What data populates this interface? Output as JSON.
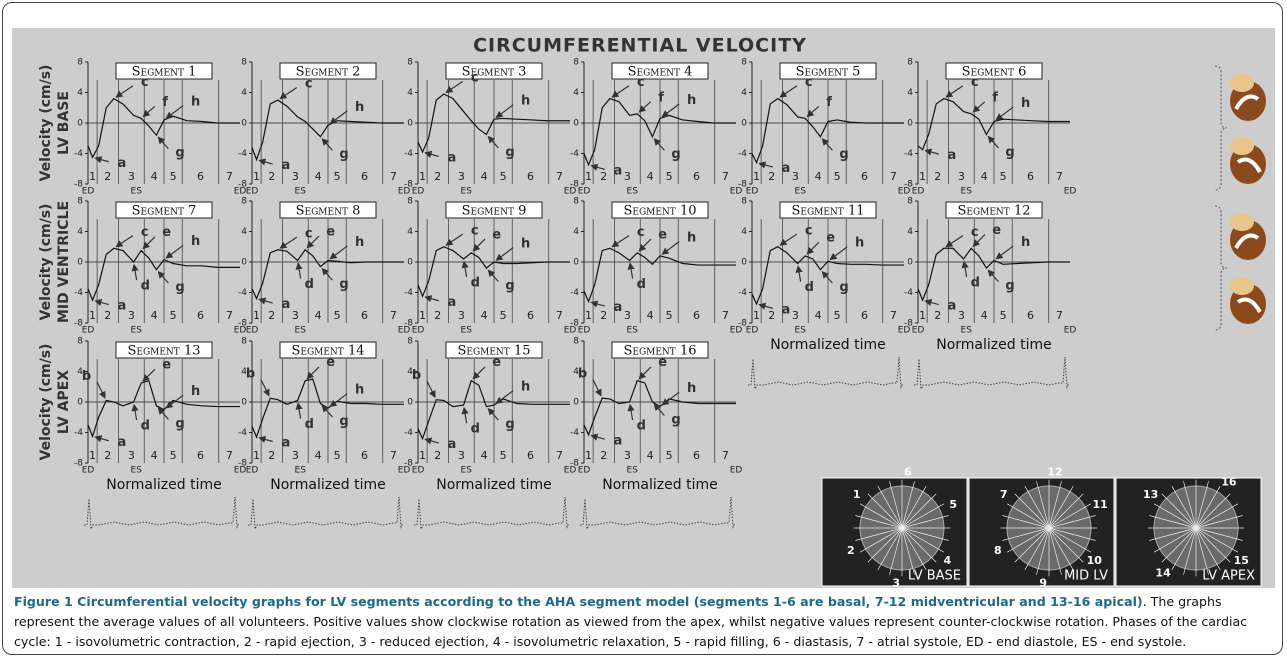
{
  "figure_title": "CIRCUMFERENTIAL VELOCITY",
  "y_label": "Velocity (cm/s)",
  "row_labels": [
    "LV BASE",
    "MID VENTRICLE",
    "LV APEX"
  ],
  "x_label": "Normalized time",
  "axis": {
    "ylim": [
      -8,
      8
    ],
    "yticks": [
      -8,
      -4,
      0,
      4,
      8
    ],
    "xlim": [
      0,
      1
    ],
    "x": [
      0,
      0.03,
      0.07,
      0.12,
      0.17,
      0.23,
      0.3,
      0.35,
      0.4,
      0.45,
      0.5,
      0.56,
      0.65,
      0.75,
      0.85,
      1
    ],
    "phases": [
      1,
      2,
      3,
      4,
      5,
      6,
      7
    ],
    "phase_bounds": [
      0.06,
      0.2,
      0.37,
      0.5,
      0.62,
      0.86
    ],
    "end_label": "ED",
    "es_label": "ES"
  },
  "chart_data": [
    {
      "type": "line",
      "title": "Segment 1",
      "values": [
        -3,
        -4.5,
        -3,
        2,
        3.2,
        2.5,
        1,
        0.6,
        -0.4,
        -1.6,
        0.4,
        0.9,
        0.3,
        0.2,
        0,
        0
      ],
      "annotations": [
        "a",
        "c",
        "f",
        "g",
        "h"
      ]
    },
    {
      "type": "line",
      "title": "Segment 2",
      "values": [
        -3.2,
        -4.8,
        -2.5,
        2.5,
        3,
        2.2,
        0.8,
        0.2,
        -0.8,
        -1.8,
        -0.3,
        0.3,
        0.2,
        0.1,
        0,
        0
      ],
      "annotations": [
        "a",
        "c",
        "g",
        "h"
      ]
    },
    {
      "type": "line",
      "title": "Segment 3",
      "values": [
        -2.5,
        -3.8,
        -2,
        3,
        3.8,
        3.2,
        1.5,
        0.3,
        -0.8,
        -1.5,
        0.5,
        0.6,
        0.5,
        0.4,
        0.3,
        0.3
      ],
      "annotations": [
        "a",
        "c",
        "g",
        "h"
      ]
    },
    {
      "type": "line",
      "title": "Segment 4",
      "values": [
        -4,
        -5.5,
        -3.5,
        2,
        3.2,
        2.8,
        1,
        1.2,
        0.3,
        -1.8,
        0.6,
        1,
        0.4,
        0.2,
        0,
        0
      ],
      "annotations": [
        "a",
        "c",
        "f",
        "g",
        "h"
      ]
    },
    {
      "type": "line",
      "title": "Segment 5",
      "values": [
        -4,
        -5.2,
        -3,
        2.5,
        3.2,
        2.4,
        0.8,
        0.6,
        -0.5,
        -1.8,
        0.2,
        0.4,
        0.1,
        0,
        0,
        0
      ],
      "annotations": [
        "a",
        "c",
        "f",
        "g"
      ]
    },
    {
      "type": "line",
      "title": "Segment 6",
      "values": [
        -3,
        -3.5,
        -1.5,
        2.5,
        3.2,
        2.8,
        1.5,
        1.2,
        0.5,
        -1.5,
        0.2,
        0.5,
        0.4,
        0.3,
        0.2,
        0.2
      ],
      "annotations": [
        "a",
        "c",
        "f",
        "g",
        "h"
      ]
    },
    {
      "type": "line",
      "title": "Segment 7",
      "values": [
        -3.5,
        -5,
        -3,
        1,
        1.8,
        1.5,
        0,
        1.5,
        0.5,
        -1,
        0.3,
        -0.2,
        -0.5,
        -0.5,
        -0.7,
        -0.7
      ],
      "annotations": [
        "a",
        "c",
        "d",
        "e",
        "g",
        "h"
      ]
    },
    {
      "type": "line",
      "title": "Segment 8",
      "values": [
        -3.5,
        -4.8,
        -2.8,
        1.2,
        1.6,
        1.4,
        0.2,
        1.6,
        0.8,
        -0.6,
        0.2,
        0.1,
        -0.1,
        0,
        0,
        0
      ],
      "annotations": [
        "a",
        "c",
        "d",
        "e",
        "g",
        "h"
      ]
    },
    {
      "type": "line",
      "title": "Segment 9",
      "values": [
        -3,
        -4.5,
        -2.5,
        1.5,
        2,
        1.5,
        0.4,
        1.2,
        0.6,
        -0.8,
        0,
        -0.2,
        -0.2,
        -0.1,
        0,
        0
      ],
      "annotations": [
        "a",
        "c",
        "d",
        "e",
        "g",
        "h"
      ]
    },
    {
      "type": "line",
      "title": "Segment 10",
      "values": [
        -3.8,
        -5.2,
        -3,
        1.5,
        1.8,
        1.2,
        0.2,
        1.2,
        0.6,
        -0.3,
        0.8,
        0.5,
        -0.2,
        -0.4,
        -0.4,
        -0.4
      ],
      "annotations": [
        "a",
        "c",
        "d",
        "e",
        "h"
      ]
    },
    {
      "type": "line",
      "title": "Segment 11",
      "values": [
        -4.2,
        -5.5,
        -3.5,
        1.5,
        2,
        1.2,
        -0.2,
        0.8,
        0.4,
        -1,
        0.1,
        -0.2,
        -0.3,
        -0.3,
        -0.4,
        -0.4
      ],
      "annotations": [
        "a",
        "c",
        "d",
        "e",
        "g",
        "h"
      ]
    },
    {
      "type": "line",
      "title": "Segment 12",
      "values": [
        -3.5,
        -5,
        -3,
        1,
        1.8,
        1.8,
        0.4,
        1.8,
        0.8,
        -0.8,
        0.2,
        -0.3,
        -0.2,
        -0.1,
        0,
        0
      ],
      "annotations": [
        "a",
        "c",
        "d",
        "e",
        "g",
        "h"
      ]
    },
    {
      "type": "line",
      "title": "Segment 13",
      "values": [
        -3,
        -4.5,
        -2,
        0.2,
        0,
        -0.5,
        0,
        2.5,
        2.8,
        -0.5,
        -1,
        0.2,
        -0.3,
        -0.5,
        -0.6,
        -0.6
      ],
      "annotations": [
        "a",
        "b",
        "d",
        "e",
        "g",
        "h"
      ]
    },
    {
      "type": "line",
      "title": "Segment 14",
      "values": [
        -3.2,
        -4.6,
        -2.2,
        0.5,
        0.3,
        -0.3,
        0.2,
        2.8,
        3,
        -0.2,
        -0.8,
        0.1,
        -0.2,
        -0.2,
        -0.3,
        -0.3
      ],
      "annotations": [
        "a",
        "b",
        "d",
        "e",
        "g",
        "h"
      ]
    },
    {
      "type": "line",
      "title": "Segment 15",
      "values": [
        -3.5,
        -4.8,
        -2.5,
        0.3,
        0.2,
        -0.6,
        -0.4,
        2.8,
        2.2,
        -0.6,
        -0.4,
        0.4,
        -0.2,
        -0.3,
        -0.3,
        -0.3
      ],
      "annotations": [
        "a",
        "b",
        "d",
        "e",
        "g",
        "h"
      ]
    },
    {
      "type": "line",
      "title": "Segment 16",
      "values": [
        -3,
        -4.3,
        -2,
        0.5,
        0.4,
        -0.2,
        0,
        2.8,
        2.5,
        0,
        -0.6,
        0.4,
        0,
        -0.2,
        -0.2,
        -0.2
      ],
      "annotations": [
        "a",
        "b",
        "d",
        "e",
        "g",
        "h"
      ]
    }
  ],
  "images": [
    {
      "label": "LV BASE",
      "numbers": [
        "1",
        "6",
        "5",
        "4",
        "3",
        "2"
      ]
    },
    {
      "label": "MID LV",
      "numbers": [
        "7",
        "12",
        "11",
        "10",
        "9",
        "8"
      ]
    },
    {
      "label": "LV APEX",
      "numbers": [
        "13",
        "16",
        "15",
        "14"
      ]
    }
  ],
  "caption": {
    "bold": "Figure 1 Circumferential velocity graphs for LV segments according to the AHA segment model (segments 1-6 are basal, 7-12 midventricular and 13-16 apical)",
    "text": ". The graphs represent the average values of all volunteers. Positive values show clockwise rotation as viewed from the apex, whilst negative values represent counter-clockwise rotation. Phases of the cardiac cycle: 1 - isovolumetric contraction, 2 - rapid ejection, 3 - reduced ejection, 4 - isovolumetric relaxation, 5 - rapid filling, 6 - diastasis, 7 - atrial systole, ED - end diastole, ES - end systole."
  }
}
